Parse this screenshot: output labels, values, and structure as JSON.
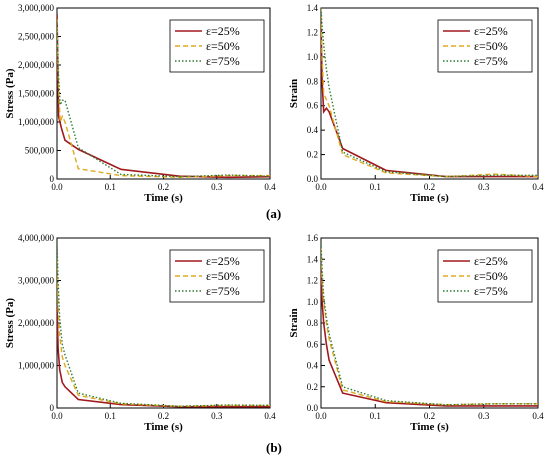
{
  "captions": {
    "a": "(a)",
    "b": "(b)"
  },
  "legend_labels": [
    "ε=25%",
    "ε=50%",
    "ε=75%"
  ],
  "colors": {
    "s25": "#a0191e",
    "s50": "#e0a820",
    "s75": "#2e7d32"
  },
  "chart_data": [
    {
      "type": "line",
      "xlabel": "Time (s)",
      "ylabel": "Stress (Pa)",
      "xlim": [
        0,
        0.4
      ],
      "ylim": [
        0,
        3000000
      ],
      "xticks": [
        "0.0",
        "0.1",
        "0.2",
        "0.3",
        "0.4"
      ],
      "yticks": [
        "0",
        "500,000",
        "1,000,000",
        "1,500,000",
        "2,000,000",
        "2,500,000",
        "3,000,000"
      ],
      "grid": false,
      "legend": "top-right",
      "series": [
        {
          "name": "ε=25%",
          "x": [
            0.0,
            0.003,
            0.008,
            0.015,
            0.04,
            0.12,
            0.23,
            0.32,
            0.4
          ],
          "y": [
            2900000,
            1100000,
            900000,
            680000,
            520000,
            170000,
            50000,
            30000,
            40000
          ]
        },
        {
          "name": "ε=50%",
          "x": [
            0.0,
            0.003,
            0.006,
            0.01,
            0.015,
            0.04,
            0.12,
            0.23,
            0.32,
            0.4
          ],
          "y": [
            2800000,
            1600000,
            1000000,
            1100000,
            1000000,
            180000,
            60000,
            30000,
            60000,
            60000
          ]
        },
        {
          "name": "ε=75%",
          "x": [
            0.0,
            0.003,
            0.006,
            0.01,
            0.015,
            0.04,
            0.12,
            0.23,
            0.32,
            0.4
          ],
          "y": [
            2750000,
            1800000,
            1300000,
            1380000,
            1380000,
            550000,
            80000,
            40000,
            70000,
            50000
          ]
        }
      ]
    },
    {
      "type": "line",
      "xlabel": "Time (s)",
      "ylabel": "Strain",
      "xlim": [
        0,
        0.4
      ],
      "ylim": [
        0,
        1.4
      ],
      "xticks": [
        "0.0",
        "0.1",
        "0.2",
        "0.3",
        "0.4"
      ],
      "yticks": [
        "0.0",
        "0.2",
        "0.4",
        "0.6",
        "0.8",
        "1.0",
        "1.2",
        "1.4"
      ],
      "grid": false,
      "legend": "top-right",
      "series": [
        {
          "name": "ε=25%",
          "x": [
            0.0,
            0.002,
            0.005,
            0.01,
            0.015,
            0.04,
            0.12,
            0.23,
            0.32,
            0.4
          ],
          "y": [
            1.3,
            0.8,
            0.55,
            0.58,
            0.55,
            0.25,
            0.07,
            0.02,
            0.02,
            0.02
          ]
        },
        {
          "name": "ε=50%",
          "x": [
            0.0,
            0.002,
            0.005,
            0.01,
            0.015,
            0.04,
            0.12,
            0.23,
            0.32,
            0.4
          ],
          "y": [
            1.4,
            1.0,
            0.7,
            0.65,
            0.6,
            0.2,
            0.05,
            0.02,
            0.04,
            0.02
          ]
        },
        {
          "name": "ε=75%",
          "x": [
            0.0,
            0.002,
            0.005,
            0.01,
            0.015,
            0.04,
            0.12,
            0.23,
            0.32,
            0.4
          ],
          "y": [
            1.4,
            1.25,
            1.1,
            0.9,
            0.75,
            0.22,
            0.06,
            0.02,
            0.03,
            0.03
          ]
        }
      ]
    },
    {
      "type": "line",
      "xlabel": "Time (s)",
      "ylabel": "Stress (Pa)",
      "xlim": [
        0,
        0.4
      ],
      "ylim": [
        0,
        4000000
      ],
      "xticks": [
        "0.0",
        "0.1",
        "0.2",
        "0.3",
        "0.4"
      ],
      "yticks": [
        "0",
        "1,000,000",
        "2,000,000",
        "3,000,000",
        "4,000,000"
      ],
      "grid": false,
      "legend": "top-right",
      "series": [
        {
          "name": "ε=25%",
          "x": [
            0.0,
            0.002,
            0.005,
            0.01,
            0.015,
            0.04,
            0.12,
            0.23,
            0.32,
            0.4
          ],
          "y": [
            2400000,
            1400000,
            900000,
            600000,
            500000,
            200000,
            80000,
            30000,
            30000,
            30000
          ]
        },
        {
          "name": "ε=50%",
          "x": [
            0.0,
            0.002,
            0.005,
            0.01,
            0.015,
            0.04,
            0.12,
            0.23,
            0.32,
            0.4
          ],
          "y": [
            3500000,
            2400000,
            1700000,
            1200000,
            1000000,
            300000,
            100000,
            40000,
            60000,
            60000
          ]
        },
        {
          "name": "ε=75%",
          "x": [
            0.0,
            0.002,
            0.005,
            0.01,
            0.015,
            0.04,
            0.12,
            0.23,
            0.32,
            0.4
          ],
          "y": [
            3900000,
            3000000,
            2100000,
            1500000,
            1250000,
            350000,
            110000,
            40000,
            70000,
            60000
          ]
        }
      ]
    },
    {
      "type": "line",
      "xlabel": "Time (s)",
      "ylabel": "Strain",
      "xlim": [
        0,
        0.4
      ],
      "ylim": [
        0,
        1.6
      ],
      "xticks": [
        "0.0",
        "0.1",
        "0.2",
        "0.3",
        "0.4"
      ],
      "yticks": [
        "0.0",
        "0.2",
        "0.4",
        "0.6",
        "0.8",
        "1.0",
        "1.2",
        "1.4",
        "1.6"
      ],
      "grid": false,
      "legend": "top-right",
      "series": [
        {
          "name": "ε=25%",
          "x": [
            0.0,
            0.002,
            0.005,
            0.01,
            0.015,
            0.04,
            0.12,
            0.23,
            0.32,
            0.4
          ],
          "y": [
            1.3,
            1.0,
            0.8,
            0.6,
            0.45,
            0.14,
            0.05,
            0.02,
            0.02,
            0.02
          ]
        },
        {
          "name": "ε=50%",
          "x": [
            0.0,
            0.002,
            0.005,
            0.01,
            0.015,
            0.04,
            0.12,
            0.23,
            0.32,
            0.4
          ],
          "y": [
            1.5,
            1.2,
            1.0,
            0.8,
            0.65,
            0.17,
            0.06,
            0.03,
            0.04,
            0.04
          ]
        },
        {
          "name": "ε=75%",
          "x": [
            0.0,
            0.002,
            0.005,
            0.01,
            0.015,
            0.04,
            0.12,
            0.23,
            0.32,
            0.4
          ],
          "y": [
            1.55,
            1.3,
            1.05,
            0.85,
            0.7,
            0.2,
            0.07,
            0.03,
            0.04,
            0.04
          ]
        }
      ]
    }
  ]
}
